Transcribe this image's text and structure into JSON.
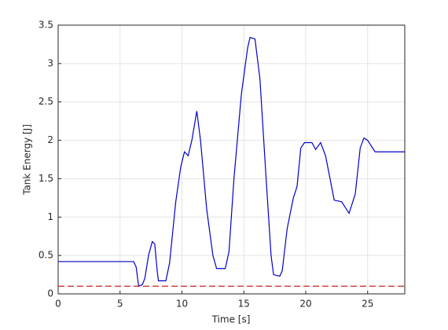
{
  "chart_data": {
    "type": "line",
    "xlabel": "Time [s]",
    "ylabel": "Tank Energy [J]",
    "xlim": [
      0,
      28
    ],
    "ylim": [
      0,
      3.5
    ],
    "xticks": [
      0,
      5,
      10,
      15,
      20,
      25
    ],
    "yticks": [
      0,
      0.5,
      1,
      1.5,
      2,
      2.5,
      3,
      3.5
    ],
    "grid": true,
    "series": [
      {
        "color": "#0000cc",
        "dash": false,
        "x": [
          0,
          6.1,
          6.3,
          6.5,
          6.8,
          7,
          7.3,
          7.6,
          7.8,
          8,
          8.1,
          8.7,
          9,
          9.5,
          9.9,
          10.2,
          10.5,
          10.8,
          11.2,
          11.5,
          12,
          12.5,
          12.8,
          13.5,
          13.8,
          14.2,
          14.8,
          15.3,
          15.5,
          15.9,
          16.3,
          16.8,
          17.2,
          17.4,
          17.9,
          18.1,
          18.5,
          19,
          19.3,
          19.6,
          19.9,
          20.5,
          20.8,
          21.2,
          21.6,
          22.3,
          22.9,
          23.5,
          24,
          24.4,
          24.7,
          25,
          25.6,
          28
        ],
        "values": [
          0.42,
          0.42,
          0.35,
          0.1,
          0.12,
          0.2,
          0.5,
          0.68,
          0.65,
          0.3,
          0.17,
          0.17,
          0.4,
          1.2,
          1.65,
          1.85,
          1.8,
          2.0,
          2.38,
          2.0,
          1.1,
          0.5,
          0.33,
          0.33,
          0.55,
          1.5,
          2.6,
          3.2,
          3.34,
          3.32,
          2.8,
          1.5,
          0.5,
          0.25,
          0.23,
          0.3,
          0.85,
          1.25,
          1.4,
          1.9,
          1.97,
          1.97,
          1.88,
          1.97,
          1.8,
          1.22,
          1.2,
          1.05,
          1.3,
          1.9,
          2.03,
          2.0,
          1.85,
          1.85
        ]
      },
      {
        "color": "#cc2222",
        "dash": true,
        "x": [
          0,
          28
        ],
        "values": [
          0.1,
          0.1
        ]
      }
    ]
  }
}
